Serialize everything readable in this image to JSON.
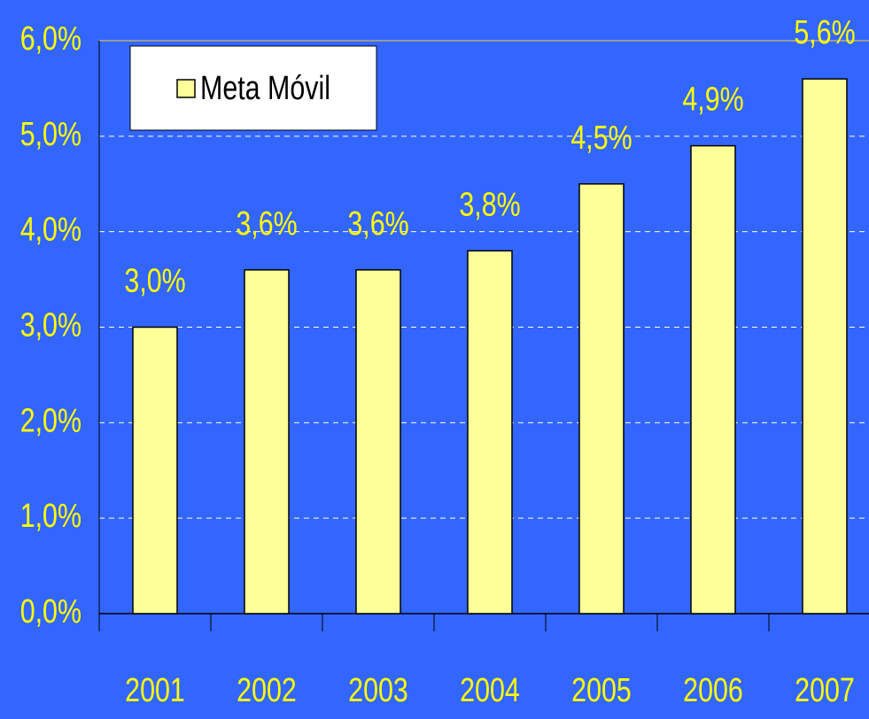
{
  "chart_data": {
    "type": "bar",
    "categories": [
      "2001",
      "2002",
      "2003",
      "2004",
      "2005",
      "2006",
      "2007"
    ],
    "series": [
      {
        "name": "Meta Móvil",
        "color": "#ffff99",
        "values": [
          3.0,
          3.6,
          3.6,
          3.8,
          4.5,
          4.9,
          5.6
        ],
        "value_labels": [
          "3,0%",
          "3,6%",
          "3,6%",
          "3,8%",
          "4,5%",
          "4,9%",
          "5,6%"
        ]
      }
    ],
    "ylim": [
      0,
      6
    ],
    "yticks": [
      {
        "value": 0,
        "label": "0,0%"
      },
      {
        "value": 1,
        "label": "1,0%"
      },
      {
        "value": 2,
        "label": "2,0%"
      },
      {
        "value": 3,
        "label": "3,0%"
      },
      {
        "value": 4,
        "label": "4,0%"
      },
      {
        "value": 5,
        "label": "5,0%"
      },
      {
        "value": 6,
        "label": "6,0%"
      }
    ],
    "grid": true,
    "legend_position": "top-left"
  }
}
